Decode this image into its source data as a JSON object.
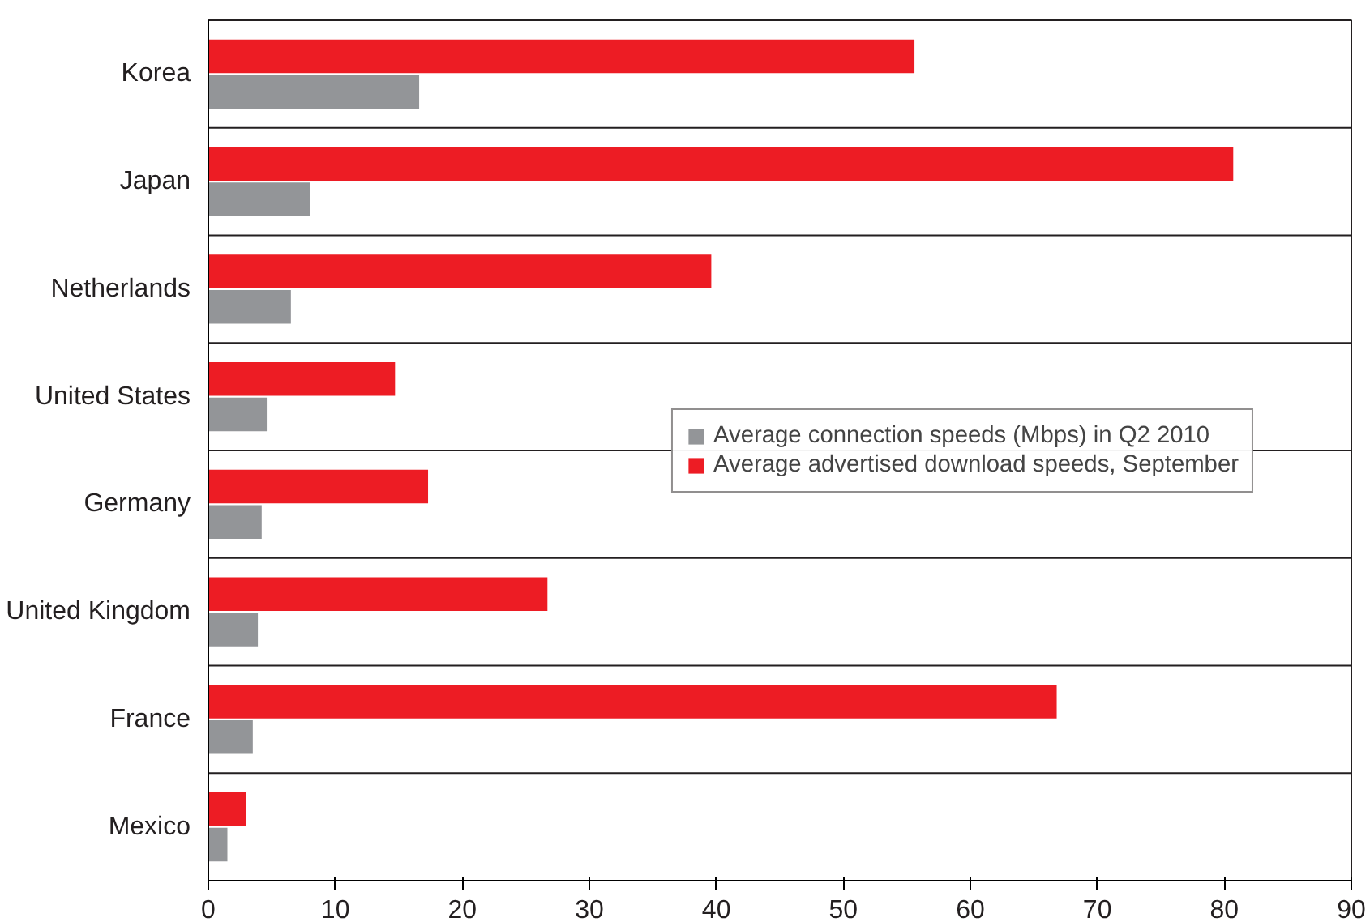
{
  "chart_data": {
    "type": "bar",
    "orientation": "horizontal",
    "categories": [
      "Korea",
      "Japan",
      "Netherlands",
      "United States",
      "Germany",
      "United Kingdom",
      "France",
      "Mexico"
    ],
    "series": [
      {
        "name": "Average connection speeds (Mbps) in Q2 2010",
        "color": "#939598",
        "values": [
          16.6,
          8.0,
          6.5,
          4.6,
          4.2,
          3.9,
          3.5,
          1.5
        ]
      },
      {
        "name": "Average advertised download speeds, September",
        "color": "#ed1c24",
        "values": [
          55.6,
          80.7,
          39.6,
          14.7,
          17.3,
          26.7,
          66.8,
          3.0
        ]
      }
    ],
    "xlim": [
      0,
      90
    ],
    "xticks": [
      0,
      10,
      20,
      30,
      40,
      50,
      60,
      70,
      80,
      90
    ],
    "grid": "y",
    "legend": "right"
  }
}
